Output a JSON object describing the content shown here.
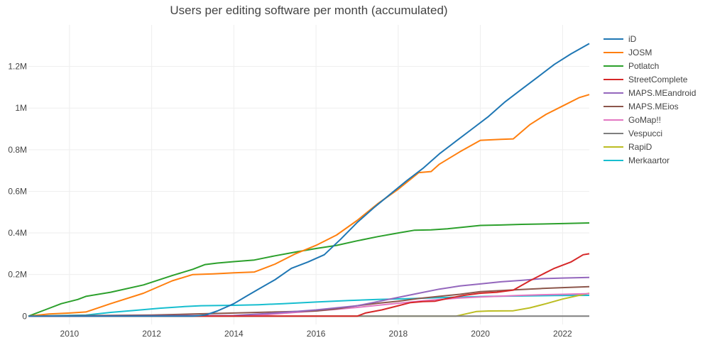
{
  "chart_data": {
    "type": "line",
    "title": "Users per editing software per month (accumulated)",
    "xlabel": "",
    "ylabel": "",
    "xlim": [
      2009.0,
      2022.65
    ],
    "ylim": [
      -40000,
      1400000
    ],
    "x_ticks": [
      2010,
      2012,
      2014,
      2016,
      2018,
      2020,
      2022
    ],
    "x_tick_labels": [
      "2010",
      "2012",
      "2014",
      "2016",
      "2018",
      "2020",
      "2022"
    ],
    "y_ticks": [
      0,
      200000,
      400000,
      600000,
      800000,
      1000000,
      1200000
    ],
    "y_tick_labels": [
      "0",
      "0.2M",
      "0.4M",
      "0.6M",
      "0.8M",
      "1M",
      "1.2M"
    ],
    "grid": true,
    "legend_position": "right",
    "series": [
      {
        "name": "iD",
        "color": "#1f77b4",
        "points": [
          [
            2009.0,
            0
          ],
          [
            2013.0,
            0
          ],
          [
            2013.3,
            5000
          ],
          [
            2013.6,
            25000
          ],
          [
            2014.0,
            60000
          ],
          [
            2014.3,
            95000
          ],
          [
            2014.6,
            130000
          ],
          [
            2015.0,
            175000
          ],
          [
            2015.4,
            230000
          ],
          [
            2015.8,
            260000
          ],
          [
            2016.2,
            295000
          ],
          [
            2016.6,
            370000
          ],
          [
            2017.0,
            450000
          ],
          [
            2017.4,
            520000
          ],
          [
            2017.8,
            585000
          ],
          [
            2018.2,
            650000
          ],
          [
            2018.6,
            710000
          ],
          [
            2019.0,
            780000
          ],
          [
            2019.4,
            840000
          ],
          [
            2019.8,
            900000
          ],
          [
            2020.2,
            960000
          ],
          [
            2020.6,
            1030000
          ],
          [
            2021.0,
            1090000
          ],
          [
            2021.4,
            1150000
          ],
          [
            2021.8,
            1210000
          ],
          [
            2022.2,
            1260000
          ],
          [
            2022.65,
            1310000
          ]
        ]
      },
      {
        "name": "JOSM",
        "color": "#ff7f0e",
        "points": [
          [
            2009.0,
            0
          ],
          [
            2009.5,
            10000
          ],
          [
            2010.0,
            15000
          ],
          [
            2010.4,
            20000
          ],
          [
            2011.0,
            60000
          ],
          [
            2011.8,
            110000
          ],
          [
            2012.5,
            170000
          ],
          [
            2013.0,
            200000
          ],
          [
            2013.5,
            203000
          ],
          [
            2014.0,
            208000
          ],
          [
            2014.5,
            212000
          ],
          [
            2015.0,
            250000
          ],
          [
            2015.5,
            300000
          ],
          [
            2016.0,
            340000
          ],
          [
            2016.5,
            390000
          ],
          [
            2017.0,
            460000
          ],
          [
            2017.5,
            540000
          ],
          [
            2018.0,
            610000
          ],
          [
            2018.5,
            690000
          ],
          [
            2018.8,
            695000
          ],
          [
            2019.0,
            730000
          ],
          [
            2019.5,
            790000
          ],
          [
            2020.0,
            845000
          ],
          [
            2020.5,
            850000
          ],
          [
            2020.8,
            852000
          ],
          [
            2021.2,
            920000
          ],
          [
            2021.6,
            970000
          ],
          [
            2022.0,
            1010000
          ],
          [
            2022.4,
            1050000
          ],
          [
            2022.65,
            1065000
          ]
        ]
      },
      {
        "name": "Potlatch",
        "color": "#2ca02c",
        "points": [
          [
            2009.0,
            0
          ],
          [
            2009.4,
            30000
          ],
          [
            2009.8,
            60000
          ],
          [
            2010.2,
            80000
          ],
          [
            2010.4,
            95000
          ],
          [
            2011.0,
            115000
          ],
          [
            2011.8,
            150000
          ],
          [
            2012.5,
            195000
          ],
          [
            2013.0,
            225000
          ],
          [
            2013.3,
            248000
          ],
          [
            2013.6,
            255000
          ],
          [
            2014.0,
            262000
          ],
          [
            2014.5,
            270000
          ],
          [
            2015.0,
            290000
          ],
          [
            2015.5,
            308000
          ],
          [
            2016.0,
            325000
          ],
          [
            2016.5,
            340000
          ],
          [
            2017.0,
            362000
          ],
          [
            2017.5,
            382000
          ],
          [
            2018.0,
            400000
          ],
          [
            2018.4,
            413000
          ],
          [
            2018.8,
            415000
          ],
          [
            2019.2,
            420000
          ],
          [
            2019.6,
            428000
          ],
          [
            2020.0,
            436000
          ],
          [
            2020.5,
            438000
          ],
          [
            2021.0,
            441000
          ],
          [
            2021.5,
            443000
          ],
          [
            2022.0,
            445000
          ],
          [
            2022.65,
            448000
          ]
        ]
      },
      {
        "name": "StreetComplete",
        "color": "#d62728",
        "points": [
          [
            2009.0,
            0
          ],
          [
            2017.0,
            0
          ],
          [
            2017.2,
            15000
          ],
          [
            2017.6,
            30000
          ],
          [
            2018.0,
            50000
          ],
          [
            2018.3,
            65000
          ],
          [
            2018.6,
            70000
          ],
          [
            2018.9,
            72000
          ],
          [
            2019.2,
            85000
          ],
          [
            2019.6,
            100000
          ],
          [
            2020.0,
            110000
          ],
          [
            2020.4,
            115000
          ],
          [
            2020.8,
            125000
          ],
          [
            2021.2,
            170000
          ],
          [
            2021.6,
            210000
          ],
          [
            2021.8,
            230000
          ],
          [
            2022.2,
            260000
          ],
          [
            2022.5,
            295000
          ],
          [
            2022.65,
            300000
          ]
        ]
      },
      {
        "name": "MAPS.MEandroid",
        "color": "#9467bd",
        "points": [
          [
            2009.0,
            0
          ],
          [
            2014.0,
            3000
          ],
          [
            2015.0,
            15000
          ],
          [
            2016.0,
            30000
          ],
          [
            2017.0,
            50000
          ],
          [
            2017.5,
            70000
          ],
          [
            2018.0,
            90000
          ],
          [
            2018.5,
            110000
          ],
          [
            2019.0,
            130000
          ],
          [
            2019.5,
            145000
          ],
          [
            2020.0,
            155000
          ],
          [
            2020.5,
            165000
          ],
          [
            2021.0,
            172000
          ],
          [
            2021.5,
            180000
          ],
          [
            2022.0,
            183000
          ],
          [
            2022.65,
            186000
          ]
        ]
      },
      {
        "name": "MAPS.MEios",
        "color": "#8c564b",
        "points": [
          [
            2009.0,
            0
          ],
          [
            2012.0,
            5000
          ],
          [
            2013.0,
            10000
          ],
          [
            2014.0,
            15000
          ],
          [
            2015.0,
            20000
          ],
          [
            2016.0,
            25000
          ],
          [
            2016.5,
            35000
          ],
          [
            2017.0,
            50000
          ],
          [
            2017.5,
            62000
          ],
          [
            2018.0,
            72000
          ],
          [
            2018.5,
            85000
          ],
          [
            2019.0,
            95000
          ],
          [
            2019.5,
            105000
          ],
          [
            2020.0,
            118000
          ],
          [
            2020.5,
            123000
          ],
          [
            2021.0,
            128000
          ],
          [
            2021.5,
            133000
          ],
          [
            2022.0,
            137000
          ],
          [
            2022.65,
            142000
          ]
        ]
      },
      {
        "name": "GoMap!!",
        "color": "#e377c2",
        "points": [
          [
            2009.0,
            0
          ],
          [
            2014.5,
            3000
          ],
          [
            2015.0,
            10000
          ],
          [
            2015.5,
            18000
          ],
          [
            2016.0,
            25000
          ],
          [
            2016.5,
            33000
          ],
          [
            2017.0,
            42000
          ],
          [
            2017.5,
            52000
          ],
          [
            2018.0,
            62000
          ],
          [
            2018.5,
            72000
          ],
          [
            2019.0,
            80000
          ],
          [
            2019.5,
            87000
          ],
          [
            2020.0,
            92000
          ],
          [
            2020.5,
            96000
          ],
          [
            2021.0,
            100000
          ],
          [
            2021.5,
            103000
          ],
          [
            2022.0,
            105000
          ],
          [
            2022.65,
            108000
          ]
        ]
      },
      {
        "name": "Vespucci",
        "color": "#7f7f7f",
        "points": [
          [
            2009.0,
            0
          ],
          [
            2022.65,
            0
          ]
        ]
      },
      {
        "name": "RapiD",
        "color": "#bcbd22",
        "points": [
          [
            2009.0,
            0
          ],
          [
            2019.4,
            0
          ],
          [
            2019.9,
            22000
          ],
          [
            2020.2,
            25000
          ],
          [
            2020.8,
            26000
          ],
          [
            2021.2,
            40000
          ],
          [
            2021.6,
            60000
          ],
          [
            2022.0,
            82000
          ],
          [
            2022.4,
            100000
          ],
          [
            2022.65,
            110000
          ]
        ]
      },
      {
        "name": "Merkaartor",
        "color": "#17becf",
        "points": [
          [
            2009.0,
            0
          ],
          [
            2010.4,
            5000
          ],
          [
            2011.0,
            18000
          ],
          [
            2011.6,
            28000
          ],
          [
            2012.2,
            38000
          ],
          [
            2012.8,
            46000
          ],
          [
            2013.2,
            50000
          ],
          [
            2014.0,
            52000
          ],
          [
            2014.6,
            55000
          ],
          [
            2015.2,
            60000
          ],
          [
            2016.0,
            68000
          ],
          [
            2016.8,
            75000
          ],
          [
            2017.5,
            80000
          ],
          [
            2018.2,
            84000
          ],
          [
            2019.0,
            89000
          ],
          [
            2019.6,
            92000
          ],
          [
            2020.2,
            95000
          ],
          [
            2021.0,
            97000
          ],
          [
            2021.8,
            99000
          ],
          [
            2022.65,
            100000
          ]
        ]
      }
    ]
  }
}
